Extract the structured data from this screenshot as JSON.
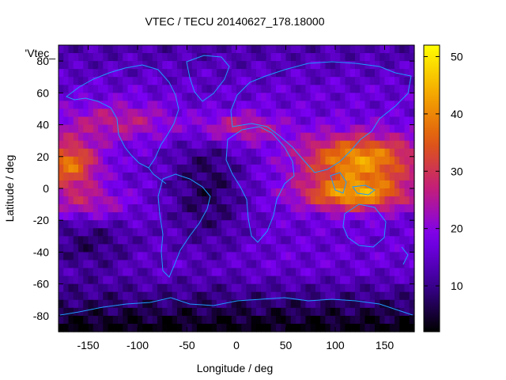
{
  "chart_data": {
    "type": "heatmap",
    "title": "VTEC / TECU 20140627_178.18000",
    "xlabel": "Longitude / deg",
    "ylabel": "Latitude / deg",
    "series_label": "'Vtec_",
    "xlim": [
      -180,
      180
    ],
    "ylim": [
      -90,
      90
    ],
    "x_ticks": [
      -150,
      -100,
      -50,
      0,
      50,
      100,
      150
    ],
    "y_ticks": [
      -80,
      -60,
      -40,
      -20,
      0,
      20,
      40,
      60,
      80
    ],
    "colorbar": {
      "min": 2,
      "max": 52,
      "ticks": [
        10,
        20,
        30,
        40,
        50
      ]
    },
    "grid": false,
    "colormap": [
      "#000000",
      "#3b0093",
      "#7a00f2",
      "#c41e7a",
      "#e05a10",
      "#f5a900",
      "#ffff00"
    ],
    "coastline_color": "#1e9bff"
  }
}
